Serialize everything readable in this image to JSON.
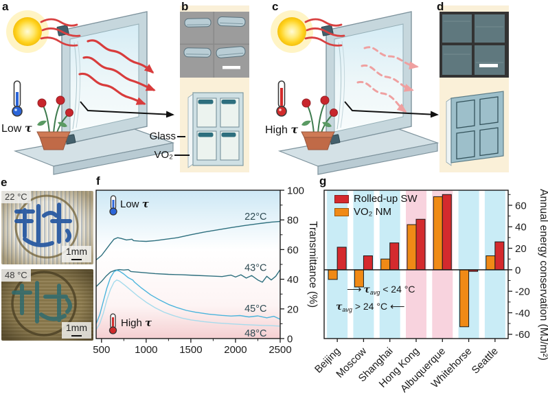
{
  "panels": {
    "a": {
      "letter": "a",
      "temp": {
        "word": "Low",
        "tau": "τ"
      }
    },
    "b": {
      "letter": "b",
      "glass_label": "Glass",
      "vo2_label": "VO₂"
    },
    "c": {
      "letter": "c",
      "temp": {
        "word": "High",
        "tau": "τ"
      }
    },
    "d": {
      "letter": "d"
    },
    "e": {
      "letter": "e",
      "photos": [
        {
          "temp_label": "22 °C",
          "scale_label": "1mm"
        },
        {
          "temp_label": "48 °C",
          "scale_label": "1mm"
        }
      ]
    },
    "f": {
      "letter": "f",
      "low": {
        "word": "Low",
        "tau": "τ"
      },
      "high": {
        "word": "High",
        "tau": "τ"
      }
    },
    "g": {
      "letter": "g",
      "annotations": [
        {
          "prefix_arrow": "⟶",
          "tau": "τ",
          "tau_sub": "avg",
          "condition": "< 24 °C",
          "suffix_arrow": ""
        },
        {
          "prefix_arrow": "",
          "tau": "τ",
          "tau_sub": "avg",
          "condition": "> 24 °C",
          "suffix_arrow": "⟵"
        }
      ]
    }
  },
  "colors": {
    "bar_red": "#d42a2e",
    "bar_orange": "#f08a16",
    "band_blue": "#c9ecf6",
    "band_pink": "#f8d3de",
    "curve_dark_teal": "#2d6f7e",
    "curve_mid_blue": "#4ab4dc",
    "curve_pale_blue": "#a6dbec",
    "cream_panel": "#faf0d8"
  },
  "chart_data": [
    {
      "id": "panel-f-transmittance-spectra",
      "type": "line",
      "title": "",
      "xlabel": "",
      "ylabel": "Transmittance (%)",
      "xlim": [
        440,
        2500
      ],
      "ylim": [
        0,
        100
      ],
      "xticks": [
        500,
        1000,
        1500,
        2000,
        2500
      ],
      "xticks_minor": [
        750,
        1250,
        1750,
        2250
      ],
      "yticks": [
        0,
        20,
        40,
        60,
        80,
        100
      ],
      "yticks_minor": [
        10,
        30,
        50,
        70,
        90
      ],
      "axis_side": "right",
      "grid": false,
      "background_gradient": [
        "#cde8f5",
        "#ffffff",
        "#f5cfd1"
      ],
      "in_plot_labels": [
        "Low τ",
        "High τ"
      ],
      "series": [
        {
          "name": "22°C",
          "color": "#2d6f7e",
          "label": {
            "x": 2350,
            "y": 80
          },
          "points": [
            [
              440,
              53
            ],
            [
              500,
              56
            ],
            [
              550,
              60
            ],
            [
              600,
              64
            ],
            [
              640,
              67
            ],
            [
              680,
              68
            ],
            [
              720,
              67.5
            ],
            [
              780,
              66.5
            ],
            [
              840,
              67
            ],
            [
              860,
              66
            ],
            [
              920,
              65.7
            ],
            [
              1000,
              65.5
            ],
            [
              1100,
              66
            ],
            [
              1200,
              66.8
            ],
            [
              1350,
              68
            ],
            [
              1500,
              70
            ],
            [
              1650,
              71.8
            ],
            [
              1800,
              73.3
            ],
            [
              1950,
              74.8
            ],
            [
              2100,
              76.2
            ],
            [
              2250,
              77.4
            ],
            [
              2400,
              78.5
            ],
            [
              2500,
              79
            ]
          ]
        },
        {
          "name": "43°C",
          "color": "#2d6f7e",
          "label": {
            "x": 2350,
            "y": 45.5
          },
          "points": [
            [
              440,
              35
            ],
            [
              500,
              38.5
            ],
            [
              550,
              42
            ],
            [
              600,
              44.8
            ],
            [
              650,
              46
            ],
            [
              700,
              46.5
            ],
            [
              750,
              46.2
            ],
            [
              800,
              46.5
            ],
            [
              830,
              45.2
            ],
            [
              900,
              44.8
            ],
            [
              1000,
              44.3
            ],
            [
              1100,
              43.8
            ],
            [
              1250,
              43.3
            ],
            [
              1400,
              43
            ],
            [
              1550,
              42.6
            ],
            [
              1700,
              42.2
            ],
            [
              1850,
              41.8
            ],
            [
              1950,
              42.8
            ],
            [
              2000,
              41.5
            ],
            [
              2060,
              43
            ],
            [
              2120,
              40.8
            ],
            [
              2180,
              42.5
            ],
            [
              2250,
              39.5
            ],
            [
              2300,
              38
            ],
            [
              2350,
              42
            ],
            [
              2400,
              39.5
            ],
            [
              2450,
              42
            ],
            [
              2500,
              46.5
            ]
          ]
        },
        {
          "name": "45°C",
          "color": "#4ab4dc",
          "label": {
            "x": 2350,
            "y": 18
          },
          "points": [
            [
              440,
              10
            ],
            [
              480,
              16
            ],
            [
              520,
              25
            ],
            [
              560,
              34
            ],
            [
              600,
              41
            ],
            [
              640,
              45
            ],
            [
              670,
              46
            ],
            [
              700,
              45.5
            ],
            [
              750,
              43.5
            ],
            [
              800,
              41
            ],
            [
              850,
              39.5
            ],
            [
              870,
              38
            ],
            [
              950,
              34
            ],
            [
              1050,
              29.5
            ],
            [
              1150,
              26
            ],
            [
              1250,
              23
            ],
            [
              1350,
              20.8
            ],
            [
              1450,
              19
            ],
            [
              1550,
              17.8
            ],
            [
              1700,
              16.5
            ],
            [
              1850,
              15.6
            ],
            [
              1950,
              15.2
            ],
            [
              2050,
              15.5
            ],
            [
              2150,
              14.6
            ],
            [
              2250,
              15.3
            ],
            [
              2350,
              14
            ],
            [
              2430,
              15
            ],
            [
              2500,
              13
            ]
          ]
        },
        {
          "name": "48°C",
          "color": "#a6dbec",
          "label": {
            "x": 2350,
            "y": 1.5
          },
          "points": [
            [
              440,
              6
            ],
            [
              480,
              10
            ],
            [
              520,
              17
            ],
            [
              560,
              26
            ],
            [
              600,
              33
            ],
            [
              640,
              38
            ],
            [
              670,
              39.5
            ],
            [
              700,
              38.8
            ],
            [
              760,
              36
            ],
            [
              820,
              33
            ],
            [
              900,
              29
            ],
            [
              1000,
              24.5
            ],
            [
              1100,
              20.8
            ],
            [
              1200,
              17.8
            ],
            [
              1300,
              15.6
            ],
            [
              1400,
              13.8
            ],
            [
              1500,
              12.6
            ],
            [
              1650,
              11.4
            ],
            [
              1800,
              10.5
            ],
            [
              1950,
              9.9
            ],
            [
              2100,
              9.4
            ],
            [
              2250,
              9
            ],
            [
              2400,
              8.7
            ],
            [
              2500,
              8.4
            ]
          ]
        }
      ]
    },
    {
      "id": "panel-g-annual-energy-conservation",
      "type": "bar",
      "ylabel": "Annual energy conservation (MJ/m²)",
      "categories": [
        "Beijing",
        "Moscow",
        "Shanghai",
        "Hong Kong",
        "Albuquerque",
        "Whitehorse",
        "Seattle"
      ],
      "series": [
        {
          "name": "Rolled-up SW",
          "color": "#d42a2e",
          "values": [
            21,
            13,
            25,
            47,
            70,
            -1.5,
            26
          ]
        },
        {
          "name": "VO₂ NM",
          "color": "#f08a16",
          "values": [
            -9,
            -16,
            10,
            42,
            68,
            -53,
            13
          ]
        }
      ],
      "band_colors": [
        "#c9ecf6",
        "#c9ecf6",
        "#c9ecf6",
        "#f8d3de",
        "#f8d3de",
        "#c9ecf6",
        "#c9ecf6"
      ],
      "ylim": [
        -64,
        74
      ],
      "yticks": [
        -60,
        -40,
        -20,
        0,
        20,
        40,
        60
      ],
      "yticks_minor": [
        -50,
        -30,
        -10,
        10,
        30,
        50,
        70
      ],
      "axis_side": "right",
      "zero_line": true,
      "legend_position": "top-left",
      "grid": false
    }
  ]
}
